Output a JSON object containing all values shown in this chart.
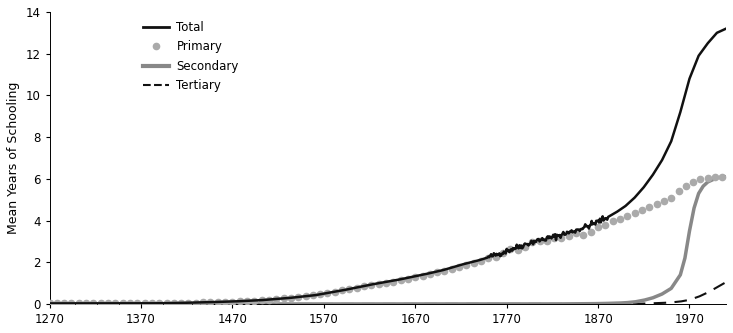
{
  "title": "",
  "xlabel": "",
  "ylabel": "Mean Years of Schooling",
  "xlim": [
    1270,
    2010
  ],
  "ylim": [
    0,
    14
  ],
  "yticks": [
    0,
    2,
    4,
    6,
    8,
    10,
    12,
    14
  ],
  "xticks": [
    1270,
    1370,
    1470,
    1570,
    1670,
    1770,
    1870,
    1970
  ],
  "background_color": "#ffffff",
  "legend_labels": [
    "Total",
    "Primary",
    "Secondary",
    "Tertiary"
  ],
  "total_color": "#111111",
  "primary_color": "#aaaaaa",
  "secondary_color": "#888888",
  "tertiary_color": "#111111"
}
